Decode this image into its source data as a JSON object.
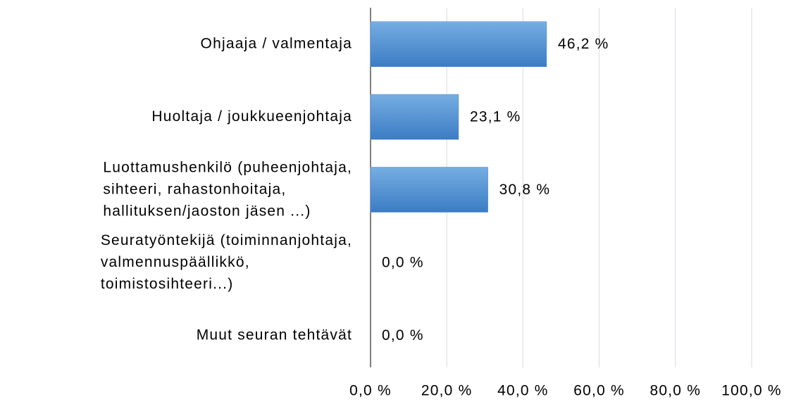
{
  "chart_data": {
    "type": "hbar",
    "categories": [
      "Ohjaaja / valmentaja",
      "Huoltaja / joukkueenjohtaja",
      "Luottamushenkilö (puheenjohtaja,\nsihteeri, rahastonhoitaja,\nhallituksen/jaoston jäsen ...)",
      "Seuratyöntekijä (toiminnanjohtaja,\nvalmennuspäällikkö,\ntoimistosihteeri...)",
      "Muut seuran tehtävät"
    ],
    "values": [
      46.2,
      23.1,
      30.8,
      0.0,
      0.0
    ],
    "value_labels": [
      "46,2 %",
      "23,1 %",
      "30,8 %",
      "0,0 %",
      "0,0 %"
    ],
    "color": "#4a88cf",
    "xlim": [
      0,
      100
    ],
    "xticks": [
      {
        "value": 0,
        "label": "0,0 %"
      },
      {
        "value": 20,
        "label": "20,0 %"
      },
      {
        "value": 40,
        "label": "40,0 %"
      },
      {
        "value": 60,
        "label": "60,0 %"
      },
      {
        "value": 80,
        "label": "80,0 %"
      },
      {
        "value": 100,
        "label": "100,0 %"
      }
    ],
    "grid": true
  }
}
